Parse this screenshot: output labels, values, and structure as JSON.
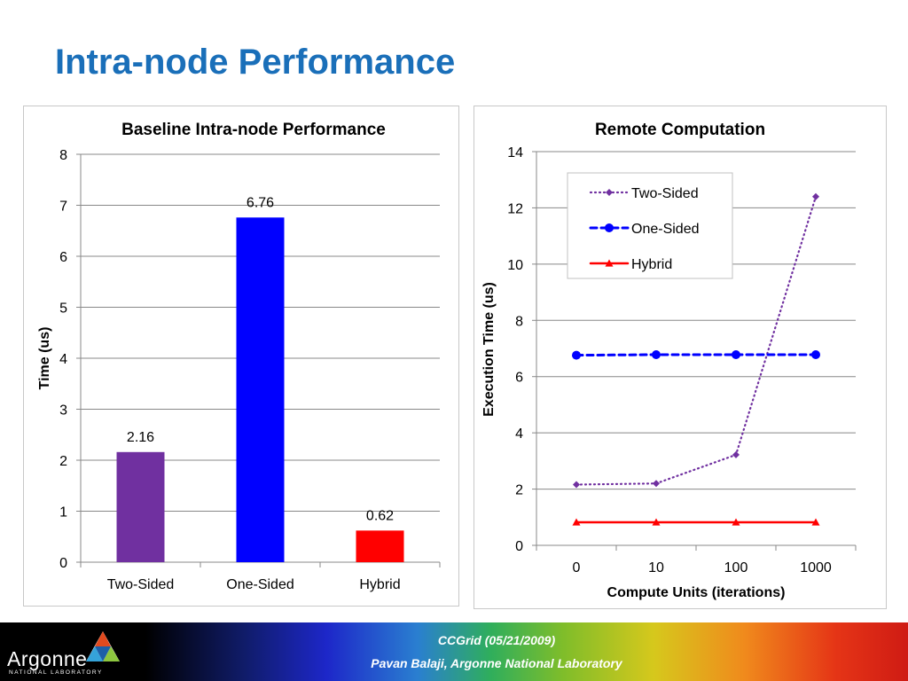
{
  "slide": {
    "title": "Intra-node Performance"
  },
  "footer": {
    "logo_name": "Argonne",
    "logo_subtitle": "NATIONAL LABORATORY",
    "line1": "CCGrid (05/21/2009)",
    "line2": "Pavan Balaji, Argonne National Laboratory"
  },
  "chart_data": [
    {
      "type": "bar",
      "title": "Baseline Intra-node Performance",
      "xlabel": "",
      "ylabel": "Time (us)",
      "categories": [
        "Two-Sided",
        "One-Sided",
        "Hybrid"
      ],
      "values": [
        2.16,
        6.76,
        0.62
      ],
      "data_labels": [
        "2.16",
        "6.76",
        "0.62"
      ],
      "colors": [
        "#7030a0",
        "#0000ff",
        "#ff0000"
      ],
      "ylim": [
        0,
        8
      ],
      "yticks": [
        "0",
        "1",
        "2",
        "3",
        "4",
        "5",
        "6",
        "7",
        "8"
      ],
      "grid": true,
      "legend": "none"
    },
    {
      "type": "line",
      "title": "Remote Computation",
      "xlabel": "Compute Units (iterations)",
      "ylabel": "Execution Time (us)",
      "x": [
        "0",
        "10",
        "100",
        "1000"
      ],
      "series": [
        {
          "name": "Two-Sided",
          "values": [
            2.16,
            2.2,
            3.22,
            12.4
          ],
          "color": "#7030a0",
          "marker": "diamond",
          "dash": "dotted"
        },
        {
          "name": "One-Sided",
          "values": [
            6.76,
            6.78,
            6.78,
            6.78
          ],
          "color": "#0000ff",
          "marker": "circle",
          "dash": "dashed"
        },
        {
          "name": "Hybrid",
          "values": [
            0.82,
            0.82,
            0.82,
            0.82
          ],
          "color": "#ff0000",
          "marker": "triangle",
          "dash": "solid"
        }
      ],
      "ylim": [
        0,
        14
      ],
      "yticks": [
        "0",
        "2",
        "4",
        "6",
        "8",
        "10",
        "12",
        "14"
      ],
      "grid": true,
      "legend": "top-right"
    }
  ]
}
